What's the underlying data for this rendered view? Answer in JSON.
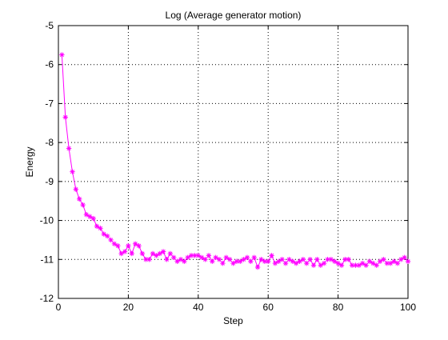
{
  "chart_data": {
    "type": "line",
    "title": "Log (Average generator motion)",
    "xlabel": "Step",
    "ylabel": "Energy",
    "xlim": [
      0,
      100
    ],
    "ylim": [
      -12,
      -5
    ],
    "xticks": [
      0,
      20,
      40,
      60,
      80,
      100
    ],
    "xtick_labels": [
      "0",
      "20",
      "40",
      "60",
      "80",
      "100"
    ],
    "yticks": [
      -12,
      -11,
      -10,
      -9,
      -8,
      -7,
      -6,
      -5
    ],
    "ytick_labels": [
      "-12",
      "-11",
      "-10",
      "-9",
      "-8",
      "-7",
      "-6",
      "-5"
    ],
    "grid": true,
    "grid_style": "dotted",
    "marker": "asterisk",
    "series": [
      {
        "color": "#ff00ff",
        "x": [
          1,
          2,
          3,
          4,
          5,
          6,
          7,
          8,
          9,
          10,
          11,
          12,
          13,
          14,
          15,
          16,
          17,
          18,
          19,
          20,
          21,
          22,
          23,
          24,
          25,
          26,
          27,
          28,
          29,
          30,
          31,
          32,
          33,
          34,
          35,
          36,
          37,
          38,
          39,
          40,
          41,
          42,
          43,
          44,
          45,
          46,
          47,
          48,
          49,
          50,
          51,
          52,
          53,
          54,
          55,
          56,
          57,
          58,
          59,
          60,
          61,
          62,
          63,
          64,
          65,
          66,
          67,
          68,
          69,
          70,
          71,
          72,
          73,
          74,
          75,
          76,
          77,
          78,
          79,
          80,
          81,
          82,
          83,
          84,
          85,
          86,
          87,
          88,
          89,
          90,
          91,
          92,
          93,
          94,
          95,
          96,
          97,
          98,
          99,
          100
        ],
        "y": [
          -5.75,
          -7.35,
          -8.15,
          -8.75,
          -9.2,
          -9.45,
          -9.6,
          -9.85,
          -9.9,
          -9.95,
          -10.15,
          -10.2,
          -10.35,
          -10.4,
          -10.5,
          -10.6,
          -10.65,
          -10.85,
          -10.8,
          -10.65,
          -10.85,
          -10.6,
          -10.65,
          -10.85,
          -11.0,
          -11.0,
          -10.85,
          -10.9,
          -10.85,
          -10.8,
          -11.0,
          -10.85,
          -10.95,
          -11.05,
          -11.0,
          -11.05,
          -10.95,
          -10.9,
          -10.9,
          -10.9,
          -10.95,
          -11.0,
          -10.9,
          -11.05,
          -10.95,
          -11.0,
          -11.1,
          -10.95,
          -11.0,
          -11.1,
          -11.05,
          -11.05,
          -11.0,
          -10.95,
          -11.05,
          -10.95,
          -11.2,
          -11.0,
          -11.05,
          -11.05,
          -10.9,
          -11.1,
          -11.05,
          -11.0,
          -11.1,
          -11.0,
          -11.05,
          -11.1,
          -11.05,
          -11.0,
          -11.1,
          -11.0,
          -11.15,
          -11.0,
          -11.15,
          -11.1,
          -11.0,
          -11.0,
          -11.05,
          -11.1,
          -11.15,
          -11.0,
          -11.0,
          -11.15,
          -11.15,
          -11.15,
          -11.1,
          -11.15,
          -11.05,
          -11.1,
          -11.15,
          -11.05,
          -11.0,
          -11.1,
          -11.1,
          -11.05,
          -11.1,
          -11.0,
          -10.95,
          -11.05
        ]
      }
    ]
  }
}
